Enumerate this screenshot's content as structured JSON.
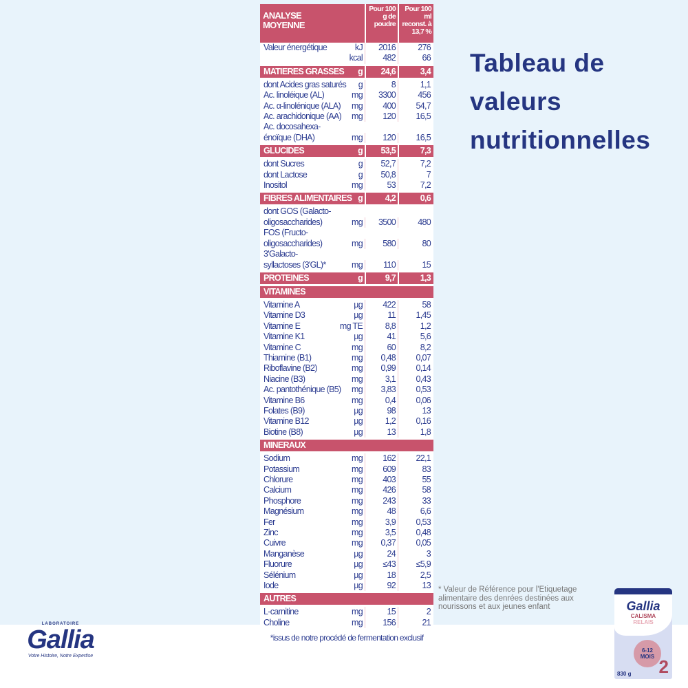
{
  "header": {
    "title": "ANALYSE\nMOYENNE",
    "col1": "Pour 100 g de poudre",
    "col2": "Pour 100 ml reconst. à 13,7 %"
  },
  "rows": [
    {
      "n": "Valeur énergétique",
      "u": "kJ",
      "a": "2016",
      "b": "276"
    },
    {
      "n": "",
      "u": "kcal",
      "a": "482",
      "b": "66"
    },
    {
      "s": 1,
      "n": "MATIERES GRASSES",
      "u": "g",
      "a": "24,6",
      "b": "3,4"
    },
    {
      "n": "dont Acides gras saturés",
      "u": "g",
      "a": "8",
      "b": "1,1"
    },
    {
      "n": " Ac. linoléique (AL)",
      "u": "mg",
      "a": "3300",
      "b": "456"
    },
    {
      "n": " Ac. α-linolénique (ALA)",
      "u": "mg",
      "a": "400",
      "b": "54,7"
    },
    {
      "n": " Ac. arachidonique (AA)",
      "u": "mg",
      "a": "120",
      "b": "16,5"
    },
    {
      "n": " Ac. docosahexa-\n énoïque (DHA)",
      "u": "mg",
      "a": "120",
      "b": "16,5"
    },
    {
      "s": 1,
      "n": "GLUCIDES",
      "u": "g",
      "a": "53,5",
      "b": "7,3"
    },
    {
      "n": "dont Sucres",
      "u": "g",
      "a": "52,7",
      "b": "7,2"
    },
    {
      "n": " dont Lactose",
      "u": "g",
      "a": "50,8",
      "b": "7"
    },
    {
      "n": "Inositol",
      "u": "mg",
      "a": "53",
      "b": "7,2"
    },
    {
      "s": 1,
      "n": "FIBRES ALIMENTAIRES",
      "u": "g",
      "a": "4,2",
      "b": "0,6"
    },
    {
      "n": "dont GOS (Galacto-\noligosaccharides)",
      "u": "mg",
      "a": "3500",
      "b": "480"
    },
    {
      "n": "FOS (Fructo-\noligosaccharides)",
      "u": "mg",
      "a": "580",
      "b": "80"
    },
    {
      "n": "3'Galacto-\nsyllactoses (3'GL)*",
      "u": "mg",
      "a": "110",
      "b": "15"
    },
    {
      "s": 1,
      "n": "PROTEINES",
      "u": "g",
      "a": "9,7",
      "b": "1,3"
    },
    {
      "s": 1,
      "n": "VITAMINES",
      "u": "",
      "a": "",
      "b": ""
    },
    {
      "n": "Vitamine A",
      "u": "µg",
      "a": "422",
      "b": "58"
    },
    {
      "n": "Vitamine D3",
      "u": "µg",
      "a": "11",
      "b": "1,45"
    },
    {
      "n": "Vitamine E",
      "u": "mg TE",
      "a": "8,8",
      "b": "1,2"
    },
    {
      "n": "Vitamine K1",
      "u": "µg",
      "a": "41",
      "b": "5,6"
    },
    {
      "n": "Vitamine C",
      "u": "mg",
      "a": "60",
      "b": "8,2"
    },
    {
      "n": "Thiamine (B1)",
      "u": "mg",
      "a": "0,48",
      "b": "0,07"
    },
    {
      "n": "Riboflavine (B2)",
      "u": "mg",
      "a": "0,99",
      "b": "0,14"
    },
    {
      "n": "Niacine (B3)",
      "u": "mg",
      "a": "3,1",
      "b": "0,43"
    },
    {
      "n": "Ac. pantothénique (B5)",
      "u": "mg",
      "a": "3,83",
      "b": "0,53"
    },
    {
      "n": "Vitamine B6",
      "u": "mg",
      "a": "0,4",
      "b": "0,06"
    },
    {
      "n": "Folates (B9)",
      "u": "µg",
      "a": "98",
      "b": "13"
    },
    {
      "n": "Vitamine B12",
      "u": "µg",
      "a": "1,2",
      "b": "0,16"
    },
    {
      "n": "Biotine (B8)",
      "u": "µg",
      "a": "13",
      "b": "1,8"
    },
    {
      "s": 1,
      "n": "MINERAUX",
      "u": "",
      "a": "",
      "b": ""
    },
    {
      "n": "Sodium",
      "u": "mg",
      "a": "162",
      "b": "22,1"
    },
    {
      "n": "Potassium",
      "u": "mg",
      "a": "609",
      "b": "83"
    },
    {
      "n": "Chlorure",
      "u": "mg",
      "a": "403",
      "b": "55"
    },
    {
      "n": "Calcium",
      "u": "mg",
      "a": "426",
      "b": "58"
    },
    {
      "n": "Phosphore",
      "u": "mg",
      "a": "243",
      "b": "33"
    },
    {
      "n": "Magnésium",
      "u": "mg",
      "a": "48",
      "b": "6,6"
    },
    {
      "n": "Fer",
      "u": "mg",
      "a": "3,9",
      "b": "0,53"
    },
    {
      "n": "Zinc",
      "u": "mg",
      "a": "3,5",
      "b": "0,48"
    },
    {
      "n": "Cuivre",
      "u": "mg",
      "a": "0,37",
      "b": "0,05"
    },
    {
      "n": "Manganèse",
      "u": "µg",
      "a": "24",
      "b": "3"
    },
    {
      "n": "Fluorure",
      "u": "µg",
      "a": "≤43",
      "b": "≤5,9"
    },
    {
      "n": "Sélénium",
      "u": "µg",
      "a": "18",
      "b": "2,5"
    },
    {
      "n": "Iode",
      "u": "µg",
      "a": "92",
      "b": "13"
    },
    {
      "s": 1,
      "n": "AUTRES",
      "u": "",
      "a": "",
      "b": ""
    },
    {
      "n": "L-carnitine",
      "u": "mg",
      "a": "15",
      "b": "2"
    },
    {
      "n": "Choline",
      "u": "mg",
      "a": "156",
      "b": "21"
    }
  ],
  "footnote": "*issus de notre procédé de fermentation exclusif",
  "title": "Tableau de\nvaleurs\nnutritionnelles",
  "note": "* Valeur de Référence pour l'Etiquetage alimentaire des denrées destinées aux nourissons et aux jeunes enfant",
  "logo": {
    "lab": "LABORATOIRE",
    "brand": "Gallia",
    "tagline": "Votre Histoire, Notre Expertise"
  },
  "product": {
    "brand": "Gallia",
    "line1": "CALISMA",
    "line2": "RELAIS",
    "age": "6-12",
    "age_unit": "MOIS",
    "stage": "2",
    "weight": "830 g"
  },
  "colors": {
    "accent": "#c8536c",
    "text": "#2a3a8f",
    "background": "#e8f3fb"
  }
}
